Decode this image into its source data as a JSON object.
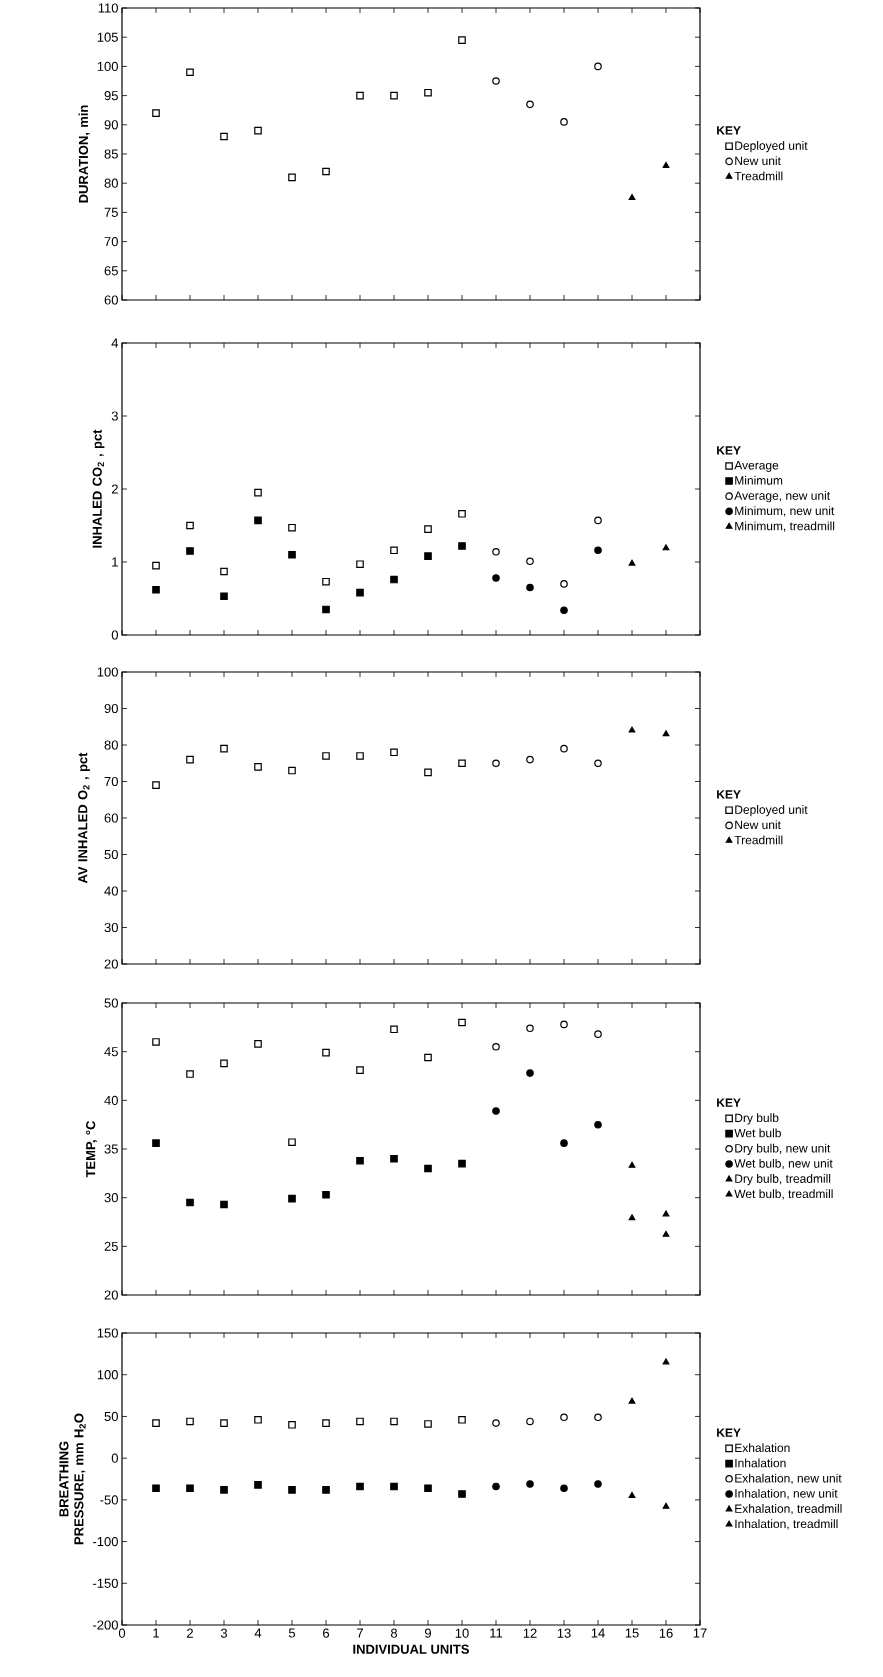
{
  "chart_data": [
    {
      "type": "scatter",
      "ylabel": "DURATION, min",
      "xlim": [
        0,
        17
      ],
      "xticks": [
        0,
        1,
        2,
        3,
        4,
        5,
        6,
        7,
        8,
        9,
        10,
        11,
        12,
        13,
        14,
        15,
        16,
        17
      ],
      "ylim": [
        60,
        110
      ],
      "yticks": [
        60,
        65,
        70,
        75,
        80,
        85,
        90,
        95,
        100,
        105,
        110
      ],
      "tick_labels": "y",
      "legend": "right",
      "legend_title": "KEY",
      "series": [
        {
          "name": "Deployed unit",
          "color": "#000000",
          "marker": "square",
          "x": [
            1,
            2,
            3,
            4,
            5,
            6,
            7,
            8,
            9,
            10
          ],
          "values": [
            92,
            99,
            88,
            89,
            81,
            82,
            95,
            95,
            95.5,
            104.5
          ]
        },
        {
          "name": "New unit",
          "color": "#000000",
          "marker": "circle",
          "x": [
            11,
            12,
            13,
            14
          ],
          "values": [
            97.5,
            93.5,
            90.5,
            100
          ]
        },
        {
          "name": "Treadmill",
          "color": "#000000",
          "marker": "triangle",
          "x": [
            15,
            16
          ],
          "values": [
            77.5,
            83
          ]
        }
      ]
    },
    {
      "type": "scatter",
      "ylabel": "INHALED CO$_{2}$ , pct",
      "xlim": [
        0,
        17
      ],
      "xticks": [
        0,
        1,
        2,
        3,
        4,
        5,
        6,
        7,
        8,
        9,
        10,
        11,
        12,
        13,
        14,
        15,
        16,
        17
      ],
      "ylim": [
        0,
        4
      ],
      "yticks": [
        0,
        1,
        2,
        3,
        4
      ],
      "tick_labels": "y",
      "legend": "right",
      "legend_title": "KEY",
      "series": [
        {
          "name": "Average",
          "color": "#000000",
          "marker": "square",
          "x": [
            1,
            2,
            3,
            4,
            5,
            6,
            7,
            8,
            9,
            10
          ],
          "values": [
            0.95,
            1.5,
            0.87,
            1.95,
            1.47,
            0.73,
            0.97,
            1.16,
            1.45,
            1.66
          ]
        },
        {
          "name": "Minimum",
          "color": "#000000",
          "marker": "square",
          "x": [
            1,
            2,
            3,
            4,
            5,
            6,
            7,
            8,
            9,
            10
          ],
          "values": [
            0.62,
            1.15,
            0.53,
            1.57,
            1.1,
            0.35,
            0.58,
            0.76,
            1.08,
            1.22
          ]
        },
        {
          "name": "Average, new unit",
          "color": "#000000",
          "marker": "circle",
          "x": [
            11,
            12,
            13,
            14
          ],
          "values": [
            1.14,
            1.01,
            0.7,
            1.57
          ]
        },
        {
          "name": "Minimum, new unit",
          "color": "#000000",
          "marker": "circle",
          "x": [
            11,
            12,
            13,
            14
          ],
          "values": [
            0.78,
            0.65,
            0.34,
            1.16
          ]
        },
        {
          "name": "Minimum, treadmill",
          "color": "#000000",
          "marker": "triangle",
          "x": [
            15,
            16
          ],
          "values": [
            0.98,
            1.19
          ]
        }
      ]
    },
    {
      "type": "scatter",
      "ylabel": "AV INHALED O$_{2}$ , pct",
      "xlim": [
        0,
        17
      ],
      "xticks": [
        0,
        1,
        2,
        3,
        4,
        5,
        6,
        7,
        8,
        9,
        10,
        11,
        12,
        13,
        14,
        15,
        16,
        17
      ],
      "ylim": [
        20,
        100
      ],
      "yticks": [
        20,
        30,
        40,
        50,
        60,
        70,
        80,
        90,
        100
      ],
      "tick_labels": "y",
      "legend": "right",
      "legend_title": "KEY",
      "series": [
        {
          "name": "Deployed unit",
          "color": "#000000",
          "marker": "square",
          "x": [
            1,
            2,
            3,
            4,
            5,
            6,
            7,
            8,
            9,
            10
          ],
          "values": [
            69,
            76,
            79,
            74,
            73,
            77,
            77,
            78,
            72.5,
            75
          ]
        },
        {
          "name": "New unit",
          "color": "#000000",
          "marker": "circle",
          "x": [
            11,
            12,
            13,
            14
          ],
          "values": [
            75,
            76,
            79,
            75
          ]
        },
        {
          "name": "Treadmill",
          "color": "#000000",
          "marker": "triangle",
          "x": [
            15,
            16
          ],
          "values": [
            84,
            83
          ]
        }
      ]
    },
    {
      "type": "scatter",
      "ylabel": "TEMP, °C",
      "xlim": [
        0,
        17
      ],
      "xticks": [
        0,
        1,
        2,
        3,
        4,
        5,
        6,
        7,
        8,
        9,
        10,
        11,
        12,
        13,
        14,
        15,
        16,
        17
      ],
      "ylim": [
        20,
        50
      ],
      "yticks": [
        20,
        25,
        30,
        35,
        40,
        45,
        50
      ],
      "tick_labels": "y",
      "legend": "right",
      "legend_title": "KEY",
      "series": [
        {
          "name": "Dry bulb",
          "color": "#000000",
          "marker": "square",
          "x": [
            1,
            2,
            3,
            4,
            5,
            6,
            7,
            8,
            9,
            10
          ],
          "values": [
            46,
            42.7,
            43.8,
            45.8,
            35.7,
            44.9,
            43.1,
            47.3,
            44.4,
            48
          ]
        },
        {
          "name": "Wet bulb",
          "color": "#000000",
          "marker": "square",
          "x": [
            1,
            2,
            3,
            5,
            6,
            7,
            8,
            9,
            10
          ],
          "values": [
            35.6,
            29.5,
            29.3,
            29.9,
            30.3,
            33.8,
            34,
            33,
            33.5
          ]
        },
        {
          "name": "Dry bulb, new unit",
          "color": "#000000",
          "marker": "circle",
          "x": [
            11,
            12,
            13,
            14
          ],
          "values": [
            45.5,
            47.4,
            47.8,
            46.8
          ]
        },
        {
          "name": "Wet bulb, new unit",
          "color": "#000000",
          "marker": "circle",
          "x": [
            11,
            12,
            13,
            14
          ],
          "values": [
            38.9,
            42.8,
            35.6,
            37.5
          ]
        },
        {
          "name": "Dry bulb, treadmill",
          "color": "#000000",
          "marker": "triangle",
          "x": [
            15,
            16
          ],
          "values": [
            33.3,
            28.3
          ]
        },
        {
          "name": "Wet bulb, treadmill",
          "color": "#000000",
          "marker": "triangle",
          "x": [
            15,
            16
          ],
          "values": [
            27.9,
            26.2
          ]
        }
      ]
    },
    {
      "type": "scatter",
      "ylabel": "BREATHING PRESSURE, mm H$_{2}$O",
      "xlabel": "INDIVIDUAL UNITS",
      "xlim": [
        0,
        17
      ],
      "xticks": [
        0,
        1,
        2,
        3,
        4,
        5,
        6,
        7,
        8,
        9,
        10,
        11,
        12,
        13,
        14,
        15,
        16,
        17
      ],
      "ylim": [
        -200,
        150
      ],
      "yticks": [
        -200,
        -150,
        -100,
        -50,
        0,
        50,
        100,
        150
      ],
      "legend": "right",
      "legend_title": "KEY",
      "series": [
        {
          "name": "Exhalation",
          "color": "#000000",
          "marker": "square",
          "x": [
            1,
            2,
            3,
            4,
            5,
            6,
            7,
            8,
            9,
            10
          ],
          "values": [
            42,
            44,
            42,
            46,
            40,
            42,
            44,
            44,
            41,
            46
          ]
        },
        {
          "name": "Inhalation",
          "color": "#000000",
          "marker": "square",
          "x": [
            1,
            2,
            3,
            4,
            5,
            6,
            7,
            8,
            9,
            10
          ],
          "values": [
            -36,
            -36,
            -38,
            -32,
            -38,
            -38,
            -34,
            -34,
            -36,
            -43
          ]
        },
        {
          "name": "Exhalation, new unit",
          "color": "#000000",
          "marker": "circle",
          "x": [
            11,
            12,
            13,
            14
          ],
          "values": [
            42,
            44,
            49,
            49
          ]
        },
        {
          "name": "Inhalation, new unit",
          "color": "#000000",
          "marker": "circle",
          "x": [
            11,
            12,
            13,
            14
          ],
          "values": [
            -34,
            -31,
            -36,
            -31
          ]
        },
        {
          "name": "Exhalation, treadmill",
          "color": "#000000",
          "marker": "triangle",
          "x": [
            15,
            16
          ],
          "values": [
            68,
            115
          ]
        },
        {
          "name": "Inhalation, treadmill",
          "color": "#000000",
          "marker": "triangle",
          "x": [
            15,
            16
          ],
          "values": [
            -45,
            -58
          ]
        }
      ]
    }
  ]
}
